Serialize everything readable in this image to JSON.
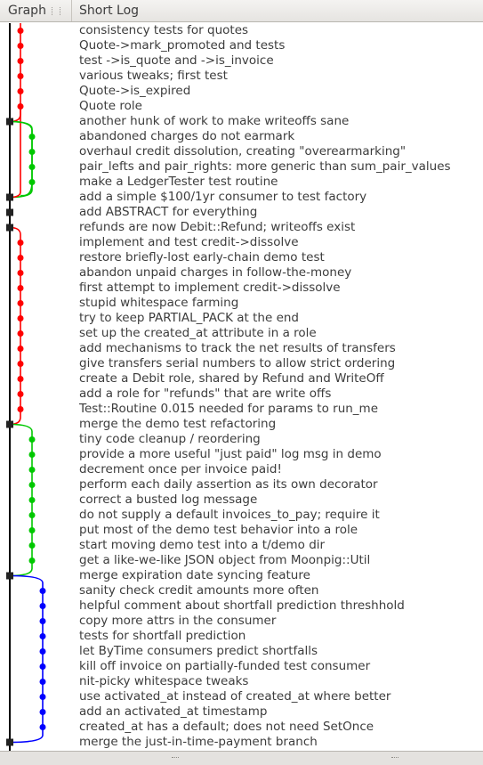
{
  "header": {
    "graph_label": "Graph",
    "log_label": "Short Log"
  },
  "colors": {
    "trunk": "#000000",
    "red": "#ff0000",
    "green": "#00c800",
    "blue": "#0000ff",
    "node_fill": "#222222"
  },
  "commits": [
    {
      "message": "consistency tests for quotes",
      "branch": "red",
      "merge": false
    },
    {
      "message": "Quote->mark_promoted and tests",
      "branch": "red",
      "merge": false
    },
    {
      "message": "test ->is_quote and ->is_invoice",
      "branch": "red",
      "merge": false
    },
    {
      "message": "various tweaks; first test",
      "branch": "red",
      "merge": false
    },
    {
      "message": "Quote->is_expired",
      "branch": "red",
      "merge": false
    },
    {
      "message": "Quote role",
      "branch": "red",
      "merge": false
    },
    {
      "message": "another hunk of work to make writeoffs sane",
      "branch": "trunk",
      "merge": true
    },
    {
      "message": "abandoned charges do not earmark",
      "branch": "green",
      "merge": false
    },
    {
      "message": "overhaul credit dissolution, creating \"overearmarking\"",
      "branch": "green",
      "merge": false
    },
    {
      "message": "pair_lefts and pair_rights: more generic than sum_pair_values",
      "branch": "green",
      "merge": false
    },
    {
      "message": "make a LedgerTester test routine",
      "branch": "green",
      "merge": false
    },
    {
      "message": "add a simple $100/1yr consumer to test factory",
      "branch": "trunk",
      "merge": true
    },
    {
      "message": "add ABSTRACT for everything",
      "branch": "trunk",
      "merge": true
    },
    {
      "message": "refunds are now Debit::Refund; writeoffs exist",
      "branch": "trunk",
      "merge": true
    },
    {
      "message": "implement and test credit->dissolve",
      "branch": "red",
      "merge": false
    },
    {
      "message": "restore briefly-lost early-chain demo test",
      "branch": "red",
      "merge": false
    },
    {
      "message": "abandon unpaid charges in follow-the-money",
      "branch": "red",
      "merge": false
    },
    {
      "message": "first attempt to implement credit->dissolve",
      "branch": "red",
      "merge": false
    },
    {
      "message": "stupid whitespace farming",
      "branch": "red",
      "merge": false
    },
    {
      "message": "try to keep PARTIAL_PACK at the end",
      "branch": "red",
      "merge": false
    },
    {
      "message": "set up the created_at attribute in a role",
      "branch": "red",
      "merge": false
    },
    {
      "message": "add mechanisms to track the net results of transfers",
      "branch": "red",
      "merge": false
    },
    {
      "message": "give transfers serial numbers to allow strict ordering",
      "branch": "red",
      "merge": false
    },
    {
      "message": "create a Debit role, shared by Refund and WriteOff",
      "branch": "red",
      "merge": false
    },
    {
      "message": "add a role for \"refunds\" that are write offs",
      "branch": "red",
      "merge": false
    },
    {
      "message": "Test::Routine 0.015 needed for params to run_me",
      "branch": "red",
      "merge": false
    },
    {
      "message": "merge the demo test refactoring",
      "branch": "trunk",
      "merge": true
    },
    {
      "message": "tiny code cleanup / reordering",
      "branch": "green",
      "merge": false
    },
    {
      "message": "provide a more useful \"just paid\" log msg in demo",
      "branch": "green",
      "merge": false
    },
    {
      "message": "decrement once per invoice paid!",
      "branch": "green",
      "merge": false
    },
    {
      "message": "perform each daily assertion as its own decorator",
      "branch": "green",
      "merge": false
    },
    {
      "message": "correct a busted log message",
      "branch": "green",
      "merge": false
    },
    {
      "message": "do not supply a default invoices_to_pay; require it",
      "branch": "green",
      "merge": false
    },
    {
      "message": "put most of the demo test behavior into a role",
      "branch": "green",
      "merge": false
    },
    {
      "message": "start moving demo test into a t/demo dir",
      "branch": "green",
      "merge": false
    },
    {
      "message": "get a like-we-like JSON object from Moonpig::Util",
      "branch": "green",
      "merge": false
    },
    {
      "message": "merge expiration date syncing feature",
      "branch": "trunk",
      "merge": true
    },
    {
      "message": "sanity check credit amounts more often",
      "branch": "blue",
      "merge": false
    },
    {
      "message": "helpful comment about shortfall prediction threshhold",
      "branch": "blue",
      "merge": false
    },
    {
      "message": "copy more attrs in the consumer",
      "branch": "blue",
      "merge": false
    },
    {
      "message": "tests for shortfall prediction",
      "branch": "blue",
      "merge": false
    },
    {
      "message": "let ByTime consumers predict shortfalls",
      "branch": "blue",
      "merge": false
    },
    {
      "message": "kill off invoice on partially-funded test consumer",
      "branch": "blue",
      "merge": false
    },
    {
      "message": "nit-picky whitespace tweaks",
      "branch": "blue",
      "merge": false
    },
    {
      "message": "use activated_at instead of created_at where better",
      "branch": "blue",
      "merge": false
    },
    {
      "message": "add an activated_at timestamp",
      "branch": "blue",
      "merge": false
    },
    {
      "message": "created_at has a default; does not need SetOnce",
      "branch": "blue",
      "merge": false
    },
    {
      "message": "merge the just-in-time-payment branch",
      "branch": "trunk",
      "merge": true
    }
  ]
}
